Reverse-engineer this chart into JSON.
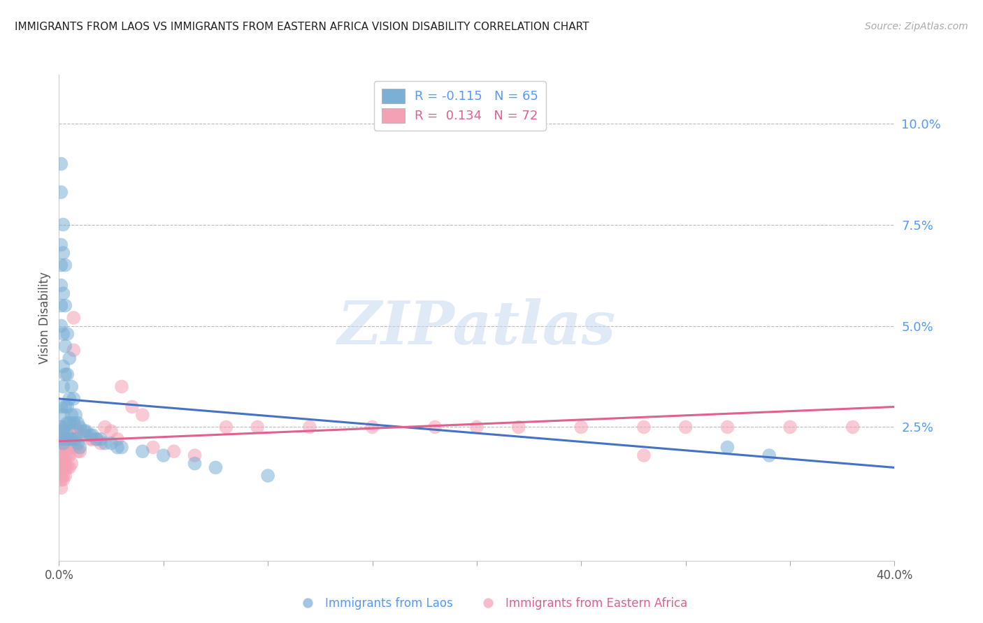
{
  "title": "IMMIGRANTS FROM LAOS VS IMMIGRANTS FROM EASTERN AFRICA VISION DISABILITY CORRELATION CHART",
  "source": "Source: ZipAtlas.com",
  "ylabel": "Vision Disability",
  "ytick_values": [
    0.025,
    0.05,
    0.075,
    0.1
  ],
  "ytick_labels": [
    "2.5%",
    "5.0%",
    "7.5%",
    "10.0%"
  ],
  "xlim": [
    0.0,
    0.4
  ],
  "ylim": [
    -0.008,
    0.112
  ],
  "background_color": "#ffffff",
  "grid_color": "#bbbbbb",
  "series": [
    {
      "label": "Immigrants from Laos",
      "color": "#7bafd4",
      "R": -0.115,
      "N": 65,
      "line_color": "#4472c4",
      "x_line_start": 0.0,
      "x_line_end": 0.4,
      "y_line_start": 0.032,
      "y_line_end": 0.015
    },
    {
      "label": "Immigrants from Eastern Africa",
      "color": "#f4a0b5",
      "R": 0.134,
      "N": 72,
      "line_color": "#e06090",
      "x_line_start": 0.0,
      "x_line_end": 0.4,
      "y_line_start": 0.0215,
      "y_line_end": 0.03
    }
  ],
  "watermark_text": "ZIPatlas",
  "watermark_color": "#c8d8f0",
  "legend_R_values": [
    "-0.115",
    "0.134"
  ],
  "legend_N_values": [
    "65",
    "72"
  ],
  "laos_x": [
    0.001,
    0.001,
    0.001,
    0.001,
    0.001,
    0.001,
    0.001,
    0.001,
    0.001,
    0.001,
    0.002,
    0.002,
    0.002,
    0.002,
    0.002,
    0.002,
    0.002,
    0.002,
    0.002,
    0.003,
    0.003,
    0.003,
    0.003,
    0.003,
    0.003,
    0.003,
    0.004,
    0.004,
    0.004,
    0.004,
    0.004,
    0.005,
    0.005,
    0.005,
    0.005,
    0.006,
    0.006,
    0.006,
    0.007,
    0.007,
    0.007,
    0.008,
    0.008,
    0.009,
    0.009,
    0.01,
    0.01,
    0.012,
    0.013,
    0.015,
    0.016,
    0.018,
    0.02,
    0.022,
    0.025,
    0.028,
    0.03,
    0.04,
    0.05,
    0.065,
    0.075,
    0.1,
    0.32,
    0.34
  ],
  "laos_y": [
    0.09,
    0.083,
    0.07,
    0.065,
    0.06,
    0.055,
    0.05,
    0.03,
    0.025,
    0.022,
    0.075,
    0.068,
    0.058,
    0.048,
    0.04,
    0.035,
    0.028,
    0.024,
    0.021,
    0.065,
    0.055,
    0.045,
    0.038,
    0.03,
    0.025,
    0.022,
    0.048,
    0.038,
    0.03,
    0.026,
    0.023,
    0.042,
    0.032,
    0.026,
    0.022,
    0.035,
    0.028,
    0.022,
    0.032,
    0.026,
    0.022,
    0.028,
    0.022,
    0.026,
    0.021,
    0.025,
    0.02,
    0.024,
    0.024,
    0.023,
    0.023,
    0.022,
    0.022,
    0.021,
    0.021,
    0.02,
    0.02,
    0.019,
    0.018,
    0.016,
    0.015,
    0.013,
    0.02,
    0.018
  ],
  "ea_x": [
    0.001,
    0.001,
    0.001,
    0.001,
    0.001,
    0.001,
    0.001,
    0.001,
    0.001,
    0.001,
    0.002,
    0.002,
    0.002,
    0.002,
    0.002,
    0.002,
    0.002,
    0.002,
    0.003,
    0.003,
    0.003,
    0.003,
    0.003,
    0.003,
    0.004,
    0.004,
    0.004,
    0.004,
    0.005,
    0.005,
    0.005,
    0.006,
    0.006,
    0.006,
    0.007,
    0.007,
    0.008,
    0.008,
    0.009,
    0.009,
    0.01,
    0.01,
    0.012,
    0.013,
    0.015,
    0.016,
    0.018,
    0.02,
    0.022,
    0.025,
    0.028,
    0.03,
    0.035,
    0.04,
    0.045,
    0.055,
    0.065,
    0.08,
    0.095,
    0.12,
    0.15,
    0.18,
    0.2,
    0.22,
    0.25,
    0.28,
    0.3,
    0.32,
    0.35,
    0.38,
    0.28
  ],
  "ea_y": [
    0.025,
    0.022,
    0.02,
    0.018,
    0.017,
    0.016,
    0.015,
    0.014,
    0.012,
    0.01,
    0.024,
    0.022,
    0.02,
    0.018,
    0.016,
    0.015,
    0.013,
    0.012,
    0.022,
    0.02,
    0.018,
    0.016,
    0.015,
    0.013,
    0.022,
    0.02,
    0.018,
    0.015,
    0.021,
    0.018,
    0.015,
    0.025,
    0.02,
    0.016,
    0.052,
    0.044,
    0.025,
    0.02,
    0.024,
    0.019,
    0.023,
    0.019,
    0.023,
    0.023,
    0.022,
    0.022,
    0.022,
    0.021,
    0.025,
    0.024,
    0.022,
    0.035,
    0.03,
    0.028,
    0.02,
    0.019,
    0.018,
    0.025,
    0.025,
    0.025,
    0.025,
    0.025,
    0.025,
    0.025,
    0.025,
    0.025,
    0.025,
    0.025,
    0.025,
    0.025,
    0.018
  ]
}
